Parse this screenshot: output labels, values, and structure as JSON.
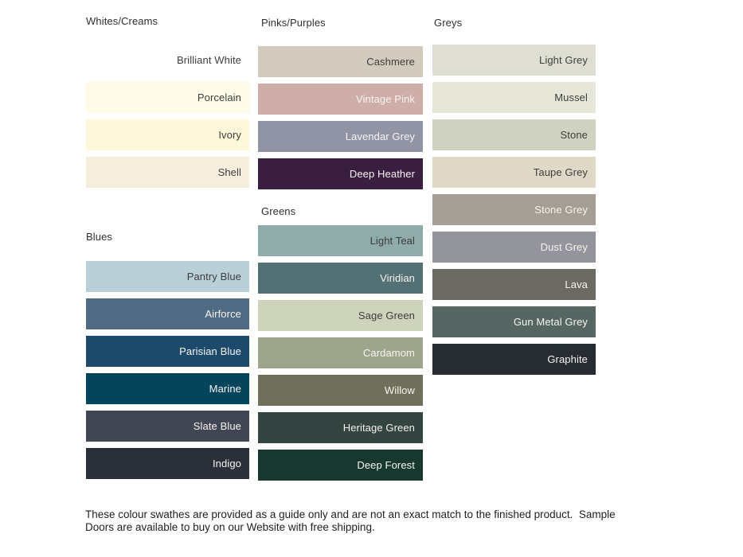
{
  "groups": {
    "whites_creams": {
      "header": "Whites/Creams",
      "swatches": [
        {
          "name": "Brilliant White",
          "color": "#ffffff",
          "text_color": "#3d3d3d"
        },
        {
          "name": "Porcelain",
          "color": "#fefce9",
          "text_color": "#3d3d3d"
        },
        {
          "name": "Ivory",
          "color": "#fcf8d9",
          "text_color": "#3d3d3d"
        },
        {
          "name": "Shell",
          "color": "#f6eedd",
          "text_color": "#3d3d3d"
        }
      ]
    },
    "pinks_purples": {
      "header": "Pinks/Purples",
      "swatches": [
        {
          "name": "Cashmere",
          "color": "#d2cbbd",
          "text_color": "#3d3d3d"
        },
        {
          "name": "Vintage Pink",
          "color": "#cfada8",
          "text_color": "#f7f4f1"
        },
        {
          "name": "Lavendar Grey",
          "color": "#9094a5",
          "text_color": "#f7f4f1"
        },
        {
          "name": "Deep Heather",
          "color": "#3a1e40",
          "text_color": "#f7f4f1"
        }
      ]
    },
    "greys": {
      "header": "Greys",
      "swatches": [
        {
          "name": "Light Grey",
          "color": "#dedfd2",
          "text_color": "#3d3d3d"
        },
        {
          "name": "Mussel",
          "color": "#e6e7d8",
          "text_color": "#3d3d3d"
        },
        {
          "name": "Stone",
          "color": "#d0d2c1",
          "text_color": "#3d3d3d"
        },
        {
          "name": "Taupe Grey",
          "color": "#e0d9c7",
          "text_color": "#3d3d3d"
        },
        {
          "name": "Stone Grey",
          "color": "#a59e95",
          "text_color": "#f7f4f1"
        },
        {
          "name": "Dust Grey",
          "color": "#94959c",
          "text_color": "#f7f4f1"
        },
        {
          "name": "Lava",
          "color": "#6b6a62",
          "text_color": "#f7f4f1"
        },
        {
          "name": "Gun Metal Grey",
          "color": "#566663",
          "text_color": "#f7f4f1"
        },
        {
          "name": "Graphite",
          "color": "#272c33",
          "text_color": "#f7f4f1"
        }
      ]
    },
    "blues": {
      "header": "Blues",
      "swatches": [
        {
          "name": "Pantry Blue",
          "color": "#b9d0d8",
          "text_color": "#3d3d3d"
        },
        {
          "name": "Airforce",
          "color": "#4f6b83",
          "text_color": "#f7f4f1"
        },
        {
          "name": "Parisian Blue",
          "color": "#1d4a6b",
          "text_color": "#f7f4f1"
        },
        {
          "name": "Marine",
          "color": "#05455c",
          "text_color": "#f7f4f1"
        },
        {
          "name": "Slate Blue",
          "color": "#404652",
          "text_color": "#f7f4f1"
        },
        {
          "name": "Indigo",
          "color": "#2a2f3a",
          "text_color": "#f7f4f1"
        }
      ]
    },
    "greens": {
      "header": "Greens",
      "swatches": [
        {
          "name": "Light Teal",
          "color": "#90acaa",
          "text_color": "#3d3d3d"
        },
        {
          "name": "Viridian",
          "color": "#537175",
          "text_color": "#f7f4f1"
        },
        {
          "name": "Sage Green",
          "color": "#ced3bc",
          "text_color": "#3d3d3d"
        },
        {
          "name": "Cardamom",
          "color": "#9da68c",
          "text_color": "#f7f4f1"
        },
        {
          "name": "Willow",
          "color": "#706f5b",
          "text_color": "#f7f4f1"
        },
        {
          "name": "Heritage Green",
          "color": "#344440",
          "text_color": "#f7f4f1"
        },
        {
          "name": "Deep Forest",
          "color": "#17382f",
          "text_color": "#f7f4f1"
        }
      ]
    }
  },
  "footer": {
    "line1": "These colour swathes are provided as a guide only and are not an exact match to the finished product.  Sample",
    "line2": "Doors are available to buy on our Website with free shipping."
  }
}
